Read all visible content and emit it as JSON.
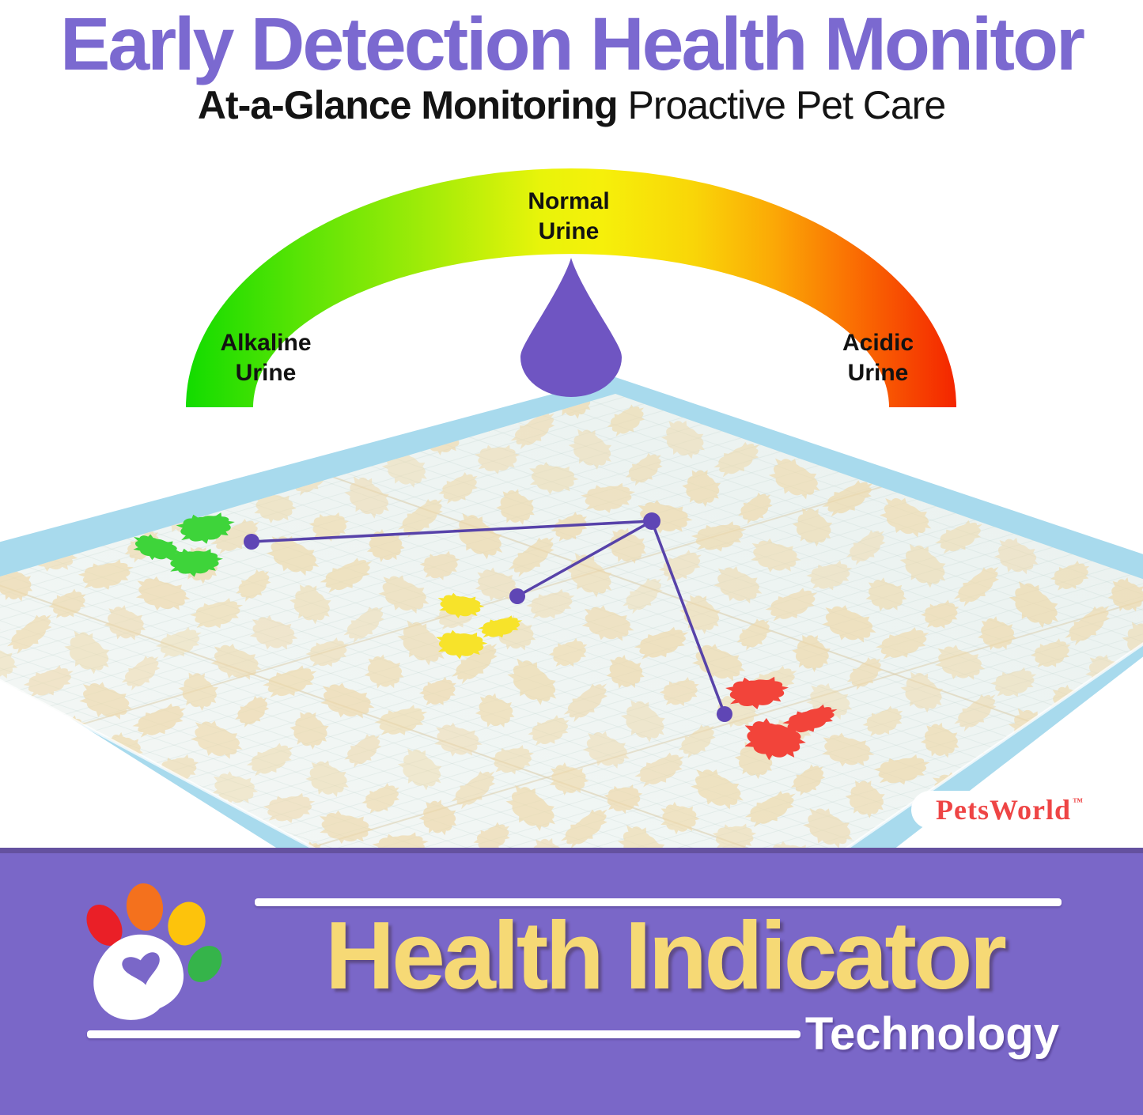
{
  "header": {
    "title": "Early Detection Health Monitor",
    "subtitle_bold": "At-a-Glance Monitoring",
    "subtitle_regular": " Proactive Pet Care"
  },
  "gauge": {
    "label_alkaline": "Alkaline\nUrine",
    "label_normal": "Normal\nUrine",
    "label_acidic": "Acidic\nUrine",
    "scale_colors": {
      "alkaline_end": "#12dc00",
      "normal_mid": "#f4f20a",
      "acidic_end": "#f42500"
    },
    "drop_color": "#6f55c2"
  },
  "pad": {
    "edge_color": "#a8daed",
    "surface_color": "#eef4f2",
    "spot_color": "#eed9ab",
    "indicator_spots": {
      "alkaline_color": "#3ed43a",
      "normal_color": "#f7e32a",
      "acidic_color": "#f2443a",
      "callout_color": "#5742a9",
      "dot_color": "#5f46b5"
    },
    "brand": "PetsWorld",
    "brand_tm": "™",
    "brand_color": "#ee4545"
  },
  "banner": {
    "background": "#7a67c8",
    "title": "Health Indicator",
    "title_color": "#f6d975",
    "subtitle": "Technology",
    "paw": {
      "red": "#ea1f27",
      "orange": "#f4711d",
      "yellow": "#fdc30c",
      "green": "#35b44a",
      "pad": "#ffffff",
      "heart": "#7a67c8"
    }
  }
}
